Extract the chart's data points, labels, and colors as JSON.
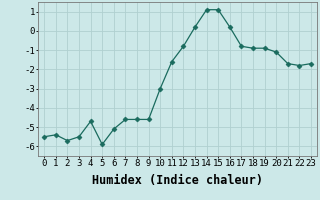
{
  "x": [
    0,
    1,
    2,
    3,
    4,
    5,
    6,
    7,
    8,
    9,
    10,
    11,
    12,
    13,
    14,
    15,
    16,
    17,
    18,
    19,
    20,
    21,
    22,
    23
  ],
  "y": [
    -5.5,
    -5.4,
    -5.7,
    -5.5,
    -4.7,
    -5.9,
    -5.1,
    -4.6,
    -4.6,
    -4.6,
    -3.0,
    -1.6,
    -0.8,
    0.2,
    1.1,
    1.1,
    0.2,
    -0.8,
    -0.9,
    -0.9,
    -1.1,
    -1.7,
    -1.8,
    -1.7
  ],
  "xlabel": "Humidex (Indice chaleur)",
  "ylim": [
    -6.5,
    1.5
  ],
  "xlim": [
    -0.5,
    23.5
  ],
  "yticks": [
    -6,
    -5,
    -4,
    -3,
    -2,
    -1,
    0,
    1
  ],
  "xticks": [
    0,
    1,
    2,
    3,
    4,
    5,
    6,
    7,
    8,
    9,
    10,
    11,
    12,
    13,
    14,
    15,
    16,
    17,
    18,
    19,
    20,
    21,
    22,
    23
  ],
  "line_color": "#1a6b5e",
  "marker": "D",
  "marker_size": 2.5,
  "bg_color": "#cce8e8",
  "grid_color": "#b0d0d0",
  "tick_label_fontsize": 6.5,
  "xlabel_fontsize": 8.5
}
